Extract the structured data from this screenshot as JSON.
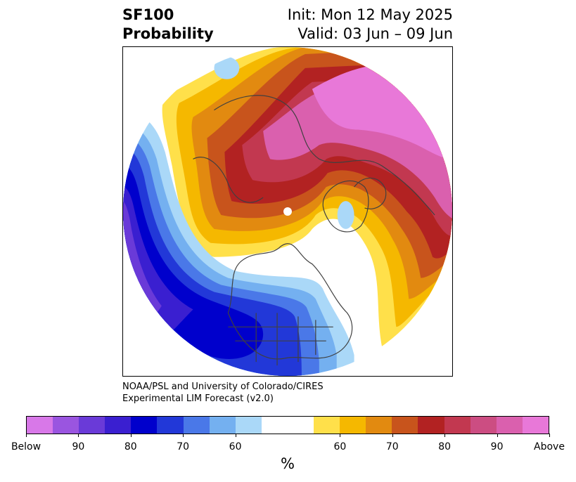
{
  "header": {
    "title_line1": "SF100",
    "title_line2": "Probability",
    "init_text": "Init: Mon 12 May 2025",
    "valid_text": "Valid: 03 Jun – 09 Jun"
  },
  "credit": {
    "line1": "NOAA/PSL and University of Colorado/CIRES",
    "line2": "Experimental LIM Forecast (v2.0)"
  },
  "colorbar": {
    "unit": "%",
    "colors": [
      "#d878e8",
      "#9a55e0",
      "#6a3ad8",
      "#3a1fd0",
      "#0000cc",
      "#2238d8",
      "#4a78e8",
      "#74b0f0",
      "#aad8f8",
      "#ffffff",
      "#ffffff",
      "#ffe04a",
      "#f5b800",
      "#e28a10",
      "#c8541c",
      "#b22222",
      "#c23850",
      "#cc4d82",
      "#da60ae",
      "#e878d8"
    ],
    "tick_labels": [
      "Below",
      "90",
      "80",
      "70",
      "60",
      "60",
      "70",
      "80",
      "90",
      "Above"
    ]
  },
  "map": {
    "colors": {
      "pink": "#e878d8",
      "pink_dark": "#da60ae",
      "rose": "#c23850",
      "red": "#b22222",
      "orange_dark": "#c8541c",
      "orange": "#e28a10",
      "gold": "#f5b800",
      "yellow": "#ffe04a",
      "lightblue": "#aad8f8",
      "sky": "#74b0f0",
      "blue_mid": "#4a78e8",
      "blue": "#2238d8",
      "navy": "#0000cc",
      "indigo": "#3a1fd0",
      "violet": "#6a3ad8",
      "coast": "#404040"
    }
  }
}
